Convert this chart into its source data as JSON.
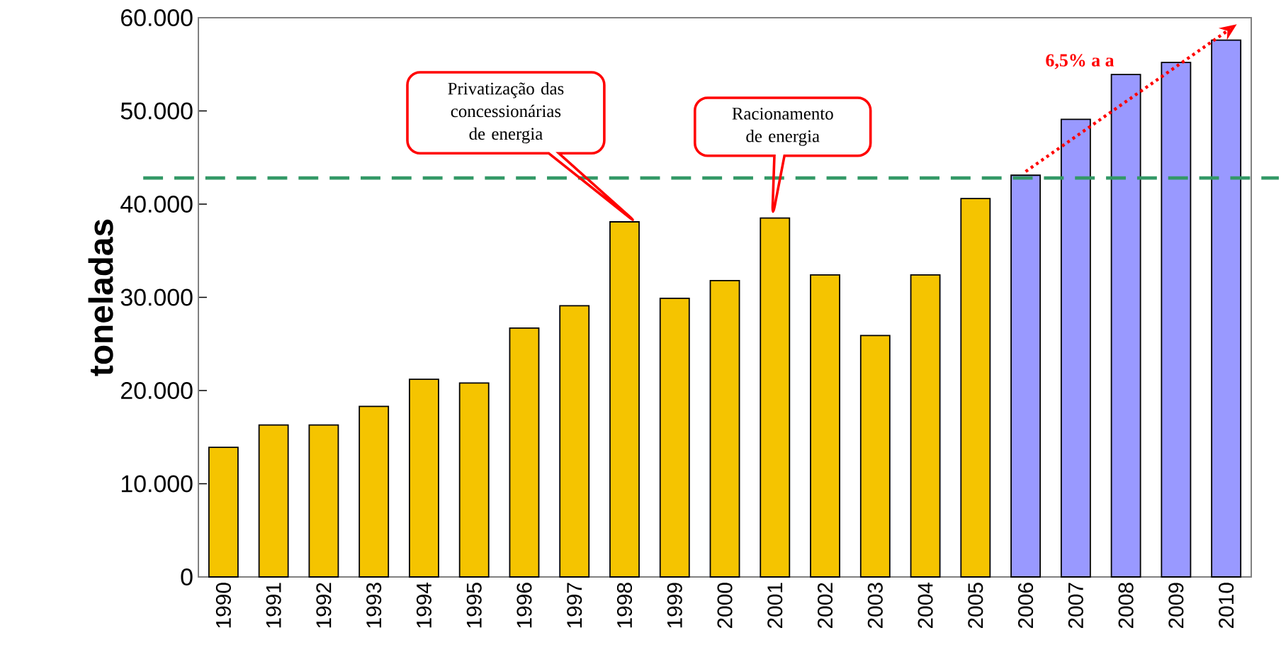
{
  "chart_data": {
    "type": "bar",
    "ylabel": "toneladas",
    "categories": [
      "1990",
      "1991",
      "1992",
      "1993",
      "1994",
      "1995",
      "1996",
      "1997",
      "1998",
      "1999",
      "2000",
      "2001",
      "2002",
      "2003",
      "2004",
      "2005",
      "2006",
      "2007",
      "2008",
      "2009",
      "2010"
    ],
    "series": [
      {
        "values": [
          13900,
          16300,
          16300,
          18300,
          21200,
          20800,
          26700,
          29100,
          38100,
          29900,
          31800,
          38500,
          32400,
          25900,
          32400,
          40600,
          43100,
          49100,
          53900,
          55200,
          57600
        ],
        "colors": [
          "#f5c400",
          "#f5c400",
          "#f5c400",
          "#f5c400",
          "#f5c400",
          "#f5c400",
          "#f5c400",
          "#f5c400",
          "#f5c400",
          "#f5c400",
          "#f5c400",
          "#f5c400",
          "#f5c400",
          "#f5c400",
          "#f5c400",
          "#f5c400",
          "#9999ff",
          "#9999ff",
          "#9999ff",
          "#9999ff",
          "#9999ff"
        ]
      },
      {
        "type": "line",
        "name": "6,5% a a",
        "color": "#ff0000",
        "values": [
          null,
          null,
          null,
          null,
          null,
          null,
          null,
          null,
          null,
          null,
          null,
          null,
          null,
          null,
          null,
          null,
          43500,
          null,
          null,
          null,
          58500
        ],
        "line_style": "dotted"
      }
    ],
    "ylim": [
      0,
      60000
    ],
    "yticks": [
      {
        "value": 0,
        "label": "0"
      },
      {
        "value": 10000,
        "label": "10.000"
      },
      {
        "value": 20000,
        "label": "20.000"
      },
      {
        "value": 30000,
        "label": "30.000"
      },
      {
        "value": 40000,
        "label": "40.000"
      },
      {
        "value": 50000,
        "label": "50.000"
      },
      {
        "value": 60000,
        "label": "60.000"
      }
    ],
    "ref_lines": [
      {
        "axis": "y",
        "value": 42800,
        "color": "#339966",
        "line_style": "dashed"
      }
    ],
    "annotations": [
      "Privatização das concessionárias de energia",
      "Racionamento de energia"
    ]
  }
}
